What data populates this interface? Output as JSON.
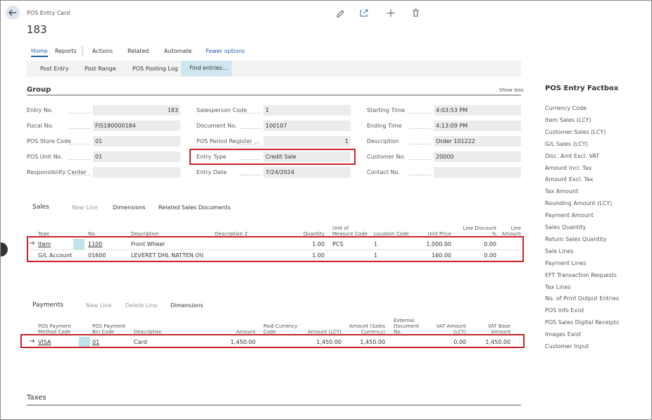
{
  "header": {
    "breadcrumb": "POS Entry Card",
    "title": "183"
  },
  "tabs": [
    "Home",
    "Reports",
    "Actions",
    "Related",
    "Automate",
    "Fewer options"
  ],
  "actions": [
    "Post Entry",
    "Post Range",
    "POS Posting Log",
    "Find entries..."
  ],
  "group": {
    "title": "Group",
    "toggle": "Show less",
    "columns": [
      [
        {
          "label": "Entry No.",
          "value": "183",
          "align": "right"
        },
        {
          "label": "Fiscal No.",
          "value": "FIS180000184"
        },
        {
          "label": "POS Store Code",
          "value": "01"
        },
        {
          "label": "POS Unit No.",
          "value": "01"
        },
        {
          "label": "Responsibility Center"
        }
      ],
      [
        {
          "label": "Salesperson Code",
          "value": "1"
        },
        {
          "label": "Document No.",
          "value": "100107"
        },
        {
          "label": "POS Period Register ...",
          "value": "1",
          "align": "right"
        },
        {
          "label": "Entry Type",
          "value": "Credit Sale",
          "highlight": true
        },
        {
          "label": "Entry Date",
          "value": "7/24/2024"
        }
      ],
      [
        {
          "label": "Starting Time",
          "value": "4:03:53 PM"
        },
        {
          "label": "Ending Time",
          "value": "4:13:09 PM"
        },
        {
          "label": "Description",
          "value": "Order 101222"
        },
        {
          "label": "Customer No.",
          "value": "20000"
        },
        {
          "label": "Contact No."
        }
      ]
    ]
  },
  "sales": {
    "title": "Sales",
    "actions": [
      "New Line",
      "Dimensions",
      "Related Sales Documents"
    ],
    "columns": [
      "Type",
      "No.",
      "Description",
      "Description 2",
      "Quantity",
      "Unit of Measure Code",
      "Location Code",
      "Unit Price",
      "Line Discount %",
      "Line Amount"
    ],
    "rows": [
      [
        "Item",
        "1100",
        "Front Wheel",
        null,
        "1.00",
        "PCS",
        "1",
        "1,000.00",
        "0.00",
        null
      ],
      [
        "G/L Account",
        "01600",
        "LEVERET DHL NATTEN OV.",
        null,
        "1.00",
        null,
        "1",
        "160.00",
        "0.00",
        null
      ]
    ]
  },
  "payments": {
    "title": "Payments",
    "actions": [
      "New Line",
      "Delete Line",
      "Dimensions"
    ],
    "columns": [
      "POS Payment Method Code",
      "POS Payment Bin Code",
      "Description",
      "Amount",
      "Paid Currency Code",
      "Amount (LCY)",
      "Amount (Sales Currency)",
      "External Document No.",
      "VAT Amount (LCY)",
      "VAT Base Amount"
    ],
    "rows": [
      [
        "VISA",
        "01",
        "Card",
        "1,450.00",
        null,
        "1,450.00",
        "1,450.00",
        null,
        "0.00",
        "1,450.00"
      ]
    ]
  },
  "taxes": {
    "title": "Taxes"
  },
  "factbox": {
    "title": "POS Entry Factbox",
    "items": [
      "Currency Code",
      "Item Sales (LCY)",
      "Customer Sales (LCY)",
      "G/L Sales (LCY)",
      "Disc. Amt Excl. VAT",
      "Amount Incl. Tax",
      "Amount Excl. Tax",
      "Tax Amount",
      "Rounding Amount (LCY)",
      "Payment Amount",
      "Sales Quantity",
      "Return Sales Quantity",
      "Sale Lines",
      "Payment Lines",
      "EFT Transaction Requests",
      "Tax Lines",
      "No. of Print Output Entries",
      "POS Info Exist",
      "POS Sales Digital Receipts",
      "Images Exist",
      "Customer Input"
    ]
  }
}
